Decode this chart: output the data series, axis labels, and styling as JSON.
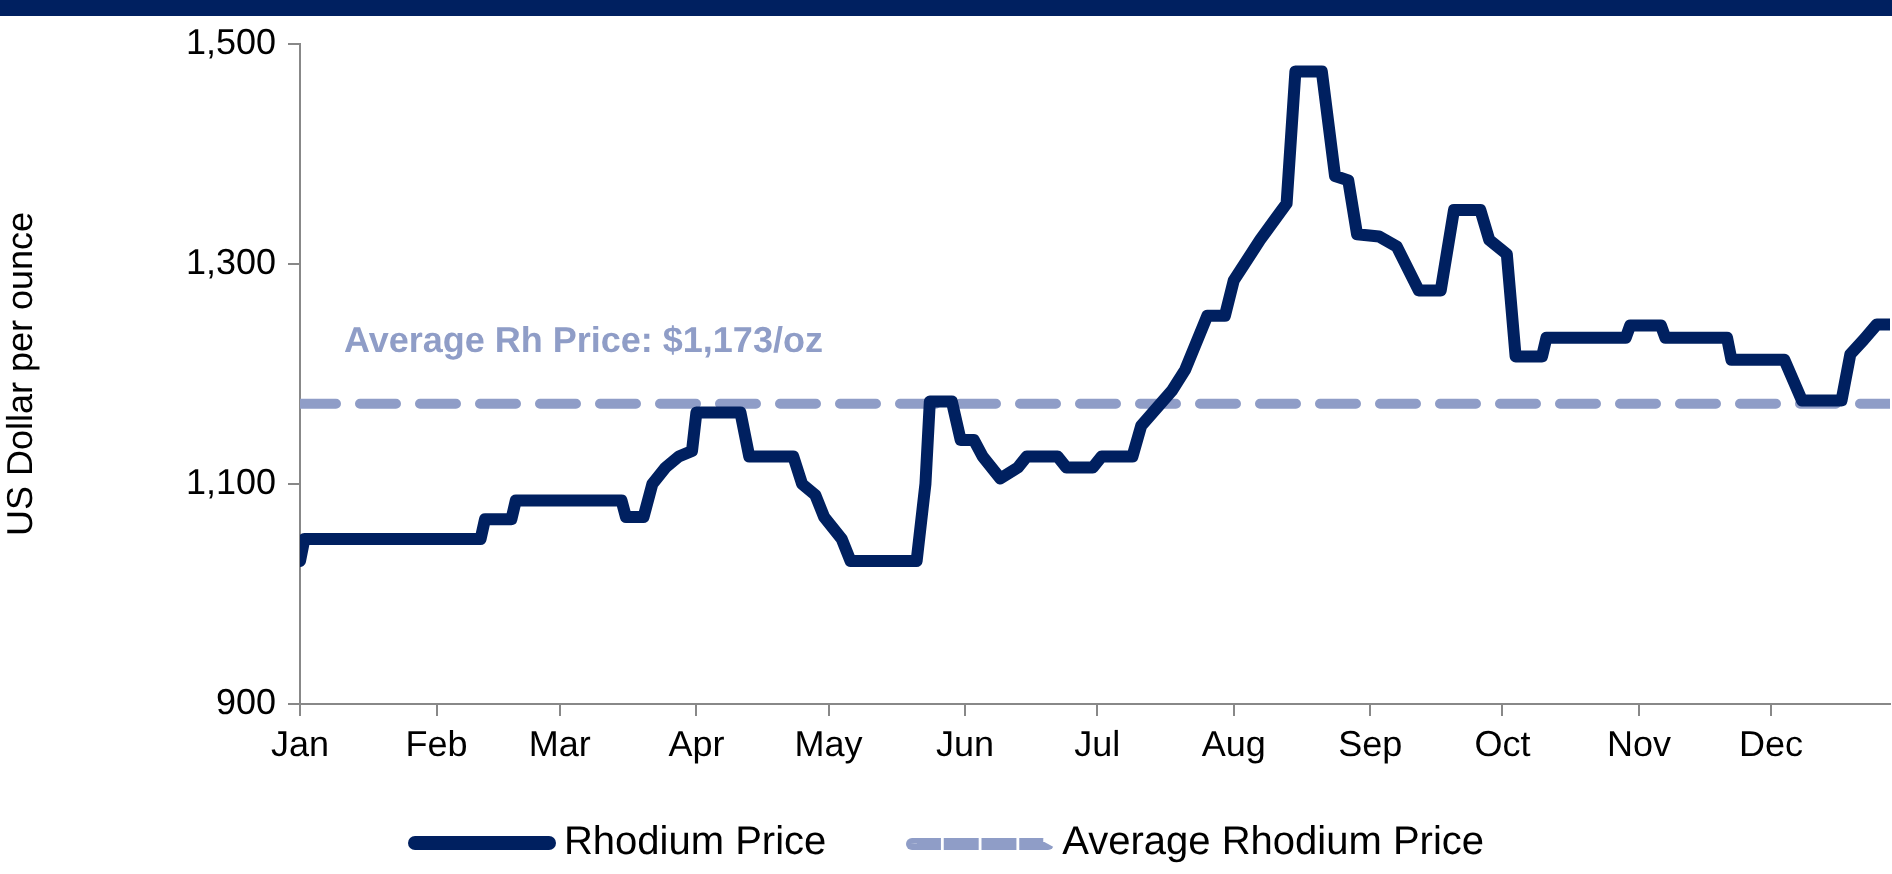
{
  "chart_data": {
    "type": "line",
    "ylabel": "US Dollar per ounce",
    "annotations": [
      "Average Rh Price: $1,173/oz"
    ],
    "xlim": [
      "--01-01",
      "--12-28"
    ],
    "xticks": [
      {
        "value": "--01-01",
        "label": "Jan"
      },
      {
        "value": "--02-01",
        "label": "Feb"
      },
      {
        "value": "--03-01",
        "label": "Mar"
      },
      {
        "value": "--04-01",
        "label": "Apr"
      },
      {
        "value": "--05-01",
        "label": "May"
      },
      {
        "value": "--06-01",
        "label": "Jun"
      },
      {
        "value": "--07-01",
        "label": "Jul"
      },
      {
        "value": "--08-01",
        "label": "Aug"
      },
      {
        "value": "--09-01",
        "label": "Sep"
      },
      {
        "value": "--10-01",
        "label": "Oct"
      },
      {
        "value": "--11-01",
        "label": "Nov"
      },
      {
        "value": "--12-01",
        "label": "Dec"
      }
    ],
    "ylim": [
      900,
      1500
    ],
    "yticks": [
      {
        "value": 900,
        "label": "900"
      },
      {
        "value": 1100,
        "label": "1,100"
      },
      {
        "value": 1300,
        "label": "1,300"
      },
      {
        "value": 1500,
        "label": "1,500"
      }
    ],
    "grid": false,
    "legend": "bottom",
    "marker": "none",
    "series": [
      {
        "name": "Rhodium Price",
        "color": "#002060",
        "line_style": "solid",
        "x": [
          "--01-01",
          "--01-02",
          "--02-11",
          "--02-12",
          "--02-18",
          "--02-19",
          "--03-15",
          "--03-16",
          "--03-20",
          "--03-22",
          "--03-25",
          "--03-28",
          "--03-31",
          "--04-01",
          "--04-11",
          "--04-13",
          "--04-23",
          "--04-25",
          "--04-28",
          "--04-30",
          "--05-04",
          "--05-06",
          "--05-21",
          "--05-23",
          "--05-24",
          "--05-29",
          "--05-31",
          "--06-03",
          "--06-05",
          "--06-09",
          "--06-13",
          "--06-15",
          "--06-22",
          "--06-24",
          "--06-30",
          "--07-02",
          "--07-09",
          "--07-11",
          "--07-18",
          "--07-21",
          "--07-26",
          "--07-30",
          "--08-01",
          "--08-07",
          "--08-13",
          "--08-15",
          "--08-21",
          "--08-24",
          "--08-27",
          "--08-29",
          "--09-03",
          "--09-07",
          "--09-12",
          "--09-17",
          "--09-20",
          "--09-26",
          "--09-28",
          "--10-02",
          "--10-04",
          "--10-10",
          "--10-11",
          "--10-29",
          "--10-30",
          "--11-06",
          "--11-07",
          "--11-21",
          "--11-22",
          "--12-04",
          "--12-08",
          "--12-17",
          "--12-19",
          "--12-22",
          "--12-25",
          "--12-28"
        ],
        "values": [
          1030,
          1050,
          1050,
          1068,
          1068,
          1085,
          1085,
          1070,
          1070,
          1100,
          1115,
          1125,
          1130,
          1165,
          1165,
          1125,
          1125,
          1100,
          1090,
          1070,
          1050,
          1030,
          1030,
          1100,
          1175,
          1175,
          1140,
          1140,
          1125,
          1105,
          1115,
          1125,
          1125,
          1115,
          1115,
          1125,
          1125,
          1153,
          1185,
          1204,
          1253,
          1253,
          1285,
          1322,
          1355,
          1475,
          1475,
          1380,
          1376,
          1327,
          1325,
          1316,
          1276,
          1276,
          1349,
          1349,
          1322,
          1309,
          1216,
          1216,
          1233,
          1233,
          1244,
          1244,
          1233,
          1233,
          1213,
          1213,
          1176,
          1176,
          1218,
          1231,
          1245,
          1245
        ]
      },
      {
        "name": "Average Rhodium Price",
        "color": "#8f9dc7",
        "line_style": "dashed",
        "x": [
          "--01-01",
          "--12-28"
        ],
        "values": [
          1173,
          1173
        ]
      }
    ]
  }
}
